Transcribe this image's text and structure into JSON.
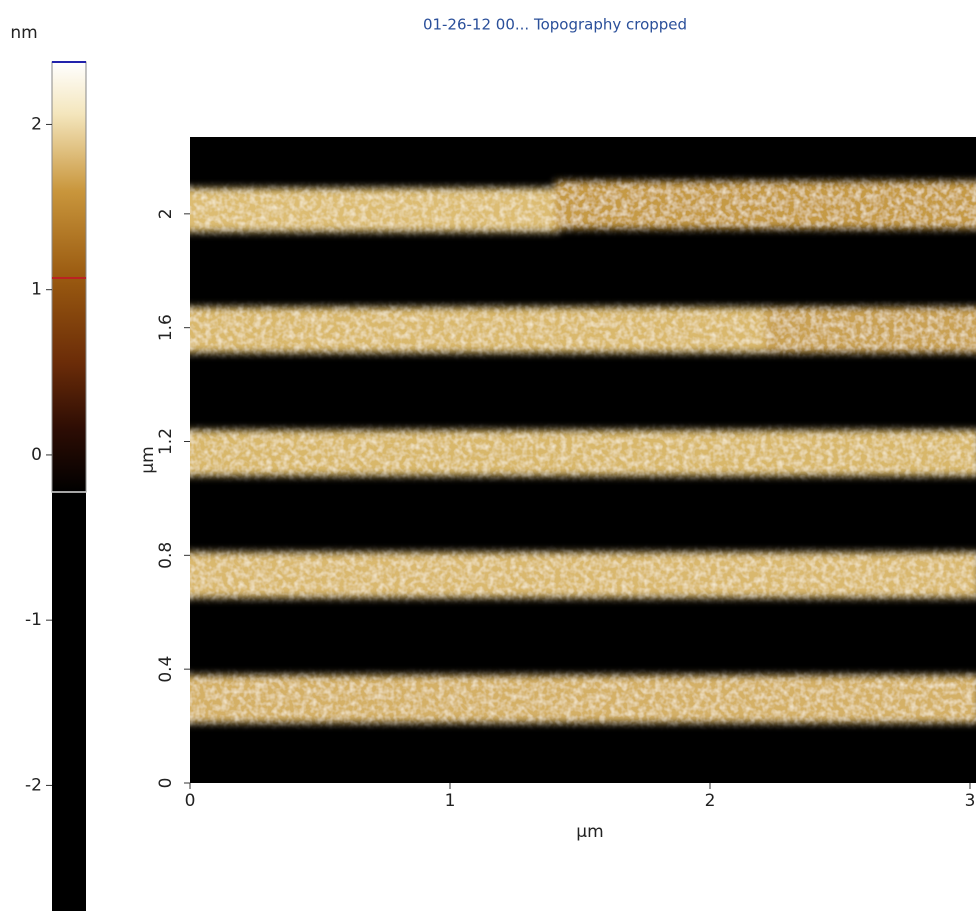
{
  "chart_data": {
    "type": "image",
    "title": "01-26-12 00... Topography cropped",
    "x_label": "µm",
    "y_label": "µm",
    "xlim": [
      0,
      3
    ],
    "xticks": [
      0,
      1,
      2,
      3
    ],
    "ylim": [
      0,
      2.27
    ],
    "yticks": [
      0,
      0.4,
      0.8,
      1.2,
      1.6,
      2
    ],
    "colorbar": {
      "label": "nm",
      "lim": [
        -2.76,
        2.39
      ],
      "ticks": [
        -2,
        -1,
        0,
        1,
        2
      ]
    }
  }
}
